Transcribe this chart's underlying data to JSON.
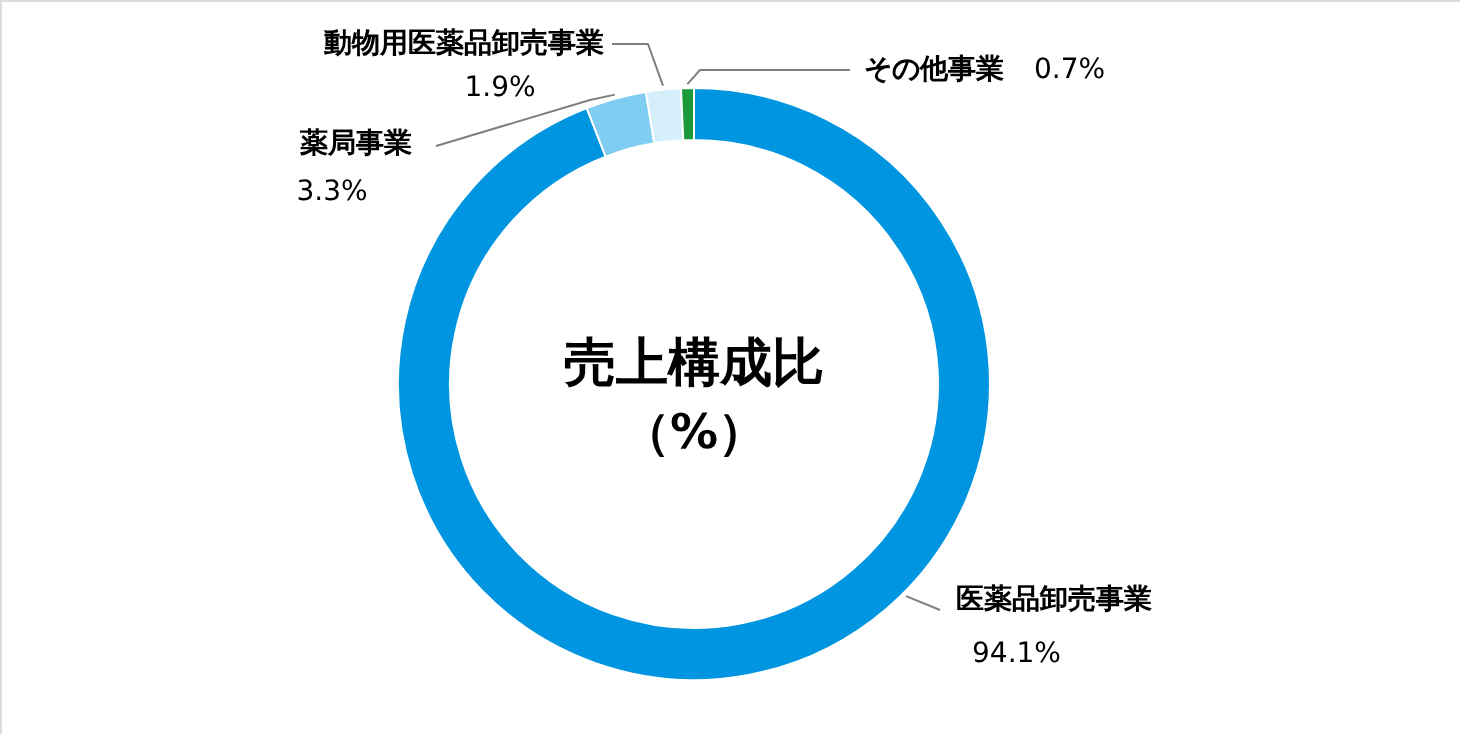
{
  "chart_data": {
    "type": "donut",
    "title": "売上構成比",
    "subtitle": "（%）",
    "categories": [
      "医薬品卸売事業",
      "薬局事業",
      "動物用医薬品卸売事業",
      "その他事業"
    ],
    "values": [
      94.1,
      3.3,
      1.9,
      0.7
    ],
    "colors": [
      "#0095e0",
      "#7fcdf2",
      "#d4eefa",
      "#1a9a3a"
    ],
    "value_labels": [
      "94.1%",
      "3.3%",
      "1.9%",
      "0.7%"
    ]
  }
}
